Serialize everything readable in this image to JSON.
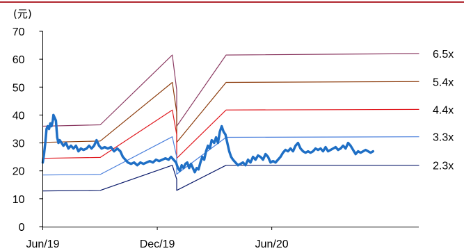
{
  "chart_data": {
    "type": "line",
    "ylabel": "(元)",
    "ylim": [
      0,
      70
    ],
    "yticks": [
      0,
      10,
      20,
      30,
      40,
      50,
      60,
      70
    ],
    "xlim": [
      "2019-06-01",
      "2021-01-22"
    ],
    "xticks": [
      {
        "date": "2019-06-01",
        "label": "Jun/19"
      },
      {
        "date": "2019-12-01",
        "label": "Dec/19"
      },
      {
        "date": "2020-06-01",
        "label": "Jun/20"
      }
    ],
    "grid": false,
    "colors": {
      "top_rule": "#b0262e",
      "axis": "#000000",
      "price": "#1f6fc5"
    },
    "series": [
      {
        "name": "6.5x",
        "color": "#8b3a62",
        "width": 1.2,
        "points": [
          [
            "2019-06-01",
            36
          ],
          [
            "2019-09-01",
            36.5
          ],
          [
            "2019-12-25",
            61.5
          ],
          [
            "2020-01-01",
            49
          ],
          [
            "2020-01-01",
            36
          ],
          [
            "2020-03-20",
            61.5
          ],
          [
            "2021-01-22",
            62
          ]
        ]
      },
      {
        "name": "5.4x",
        "color": "#8b3a0a",
        "width": 1.2,
        "points": [
          [
            "2019-06-01",
            30.2
          ],
          [
            "2019-09-01",
            30.7
          ],
          [
            "2019-12-25",
            51.7
          ],
          [
            "2020-01-01",
            41
          ],
          [
            "2020-01-01",
            30.2
          ],
          [
            "2020-03-20",
            51.7
          ],
          [
            "2021-01-22",
            52
          ]
        ]
      },
      {
        "name": "4.4x",
        "color": "#e0181e",
        "width": 1.2,
        "points": [
          [
            "2019-06-01",
            24.5
          ],
          [
            "2019-09-01",
            24.8
          ],
          [
            "2019-12-25",
            41.8
          ],
          [
            "2020-01-01",
            33
          ],
          [
            "2020-01-01",
            24.5
          ],
          [
            "2020-03-20",
            41.8
          ],
          [
            "2021-01-22",
            42
          ]
        ]
      },
      {
        "name": "3.3x",
        "color": "#4a7fdc",
        "width": 1.2,
        "points": [
          [
            "2019-06-01",
            18.5
          ],
          [
            "2019-09-01",
            18.7
          ],
          [
            "2019-12-25",
            32.2
          ],
          [
            "2020-01-01",
            25
          ],
          [
            "2020-01-01",
            18.8
          ],
          [
            "2020-03-20",
            32
          ],
          [
            "2021-01-22",
            32.2
          ]
        ]
      },
      {
        "name": "2.3x",
        "color": "#0a1a6b",
        "width": 1.2,
        "points": [
          [
            "2019-06-01",
            12.8
          ],
          [
            "2019-09-01",
            13
          ],
          [
            "2019-12-25",
            22
          ],
          [
            "2020-01-01",
            17
          ],
          [
            "2020-01-01",
            13
          ],
          [
            "2020-03-20",
            22
          ],
          [
            "2021-01-22",
            22
          ]
        ]
      },
      {
        "name": "",
        "color": "#1f6fc5",
        "width": 3.5,
        "points": [
          [
            "2019-06-01",
            23
          ],
          [
            "2019-06-03",
            26
          ],
          [
            "2019-06-05",
            30
          ],
          [
            "2019-06-07",
            35
          ],
          [
            "2019-06-09",
            36
          ],
          [
            "2019-06-11",
            35
          ],
          [
            "2019-06-13",
            37
          ],
          [
            "2019-06-15",
            36
          ],
          [
            "2019-06-17",
            38
          ],
          [
            "2019-06-18",
            40
          ],
          [
            "2019-06-20",
            39
          ],
          [
            "2019-06-22",
            38
          ],
          [
            "2019-06-24",
            32
          ],
          [
            "2019-06-26",
            30
          ],
          [
            "2019-06-28",
            31
          ],
          [
            "2019-07-01",
            30
          ],
          [
            "2019-07-04",
            29
          ],
          [
            "2019-07-08",
            30
          ],
          [
            "2019-07-12",
            28
          ],
          [
            "2019-07-16",
            29
          ],
          [
            "2019-07-20",
            28
          ],
          [
            "2019-07-24",
            29
          ],
          [
            "2019-07-28",
            27
          ],
          [
            "2019-08-01",
            28
          ],
          [
            "2019-08-05",
            27.5
          ],
          [
            "2019-08-10",
            28
          ],
          [
            "2019-08-14",
            29
          ],
          [
            "2019-08-18",
            28
          ],
          [
            "2019-08-22",
            29
          ],
          [
            "2019-08-26",
            31
          ],
          [
            "2019-08-30",
            29
          ],
          [
            "2019-09-03",
            28
          ],
          [
            "2019-09-08",
            28.5
          ],
          [
            "2019-09-13",
            28
          ],
          [
            "2019-09-18",
            28.5
          ],
          [
            "2019-09-23",
            27
          ],
          [
            "2019-09-28",
            28
          ],
          [
            "2019-10-03",
            27
          ],
          [
            "2019-10-07",
            25
          ],
          [
            "2019-10-11",
            24
          ],
          [
            "2019-10-15",
            23
          ],
          [
            "2019-10-20",
            22.5
          ],
          [
            "2019-10-25",
            23
          ],
          [
            "2019-10-30",
            22
          ],
          [
            "2019-11-04",
            23
          ],
          [
            "2019-11-09",
            22.5
          ],
          [
            "2019-11-14",
            23
          ],
          [
            "2019-11-19",
            23.5
          ],
          [
            "2019-11-24",
            23
          ],
          [
            "2019-11-29",
            24
          ],
          [
            "2019-12-04",
            23.5
          ],
          [
            "2019-12-09",
            24
          ],
          [
            "2019-12-14",
            24.5
          ],
          [
            "2019-12-19",
            24
          ],
          [
            "2019-12-23",
            25
          ],
          [
            "2019-12-27",
            24
          ],
          [
            "2019-12-31",
            23
          ],
          [
            "2020-01-03",
            21
          ],
          [
            "2020-01-06",
            20
          ],
          [
            "2020-01-09",
            22
          ],
          [
            "2020-01-12",
            21
          ],
          [
            "2020-01-15",
            22.5
          ],
          [
            "2020-01-18",
            23
          ],
          [
            "2020-01-21",
            21
          ],
          [
            "2020-01-24",
            22.5
          ],
          [
            "2020-01-27",
            21
          ],
          [
            "2020-01-30",
            19.5
          ],
          [
            "2020-02-02",
            21
          ],
          [
            "2020-02-05",
            20.5
          ],
          [
            "2020-02-08",
            23
          ],
          [
            "2020-02-11",
            25
          ],
          [
            "2020-02-14",
            24
          ],
          [
            "2020-02-17",
            27
          ],
          [
            "2020-02-20",
            29
          ],
          [
            "2020-02-23",
            28
          ],
          [
            "2020-02-26",
            31
          ],
          [
            "2020-03-01",
            30
          ],
          [
            "2020-03-04",
            32
          ],
          [
            "2020-03-07",
            30
          ],
          [
            "2020-03-10",
            34
          ],
          [
            "2020-03-13",
            36
          ],
          [
            "2020-03-16",
            34
          ],
          [
            "2020-03-19",
            33
          ],
          [
            "2020-03-22",
            30
          ],
          [
            "2020-03-25",
            27
          ],
          [
            "2020-03-28",
            25
          ],
          [
            "2020-03-31",
            24
          ],
          [
            "2020-04-04",
            23
          ],
          [
            "2020-04-08",
            22
          ],
          [
            "2020-04-12",
            22.5
          ],
          [
            "2020-04-16",
            23
          ],
          [
            "2020-04-20",
            22
          ],
          [
            "2020-04-24",
            24
          ],
          [
            "2020-04-28",
            23
          ],
          [
            "2020-05-02",
            25
          ],
          [
            "2020-05-06",
            24
          ],
          [
            "2020-05-10",
            25.5
          ],
          [
            "2020-05-14",
            25
          ],
          [
            "2020-05-18",
            24
          ],
          [
            "2020-05-22",
            26
          ],
          [
            "2020-05-26",
            25
          ],
          [
            "2020-05-30",
            23
          ],
          [
            "2020-06-03",
            23.5
          ],
          [
            "2020-06-07",
            23
          ],
          [
            "2020-06-11",
            24
          ],
          [
            "2020-06-15",
            25
          ],
          [
            "2020-06-19",
            26.5
          ],
          [
            "2020-06-23",
            27.5
          ],
          [
            "2020-06-27",
            27
          ],
          [
            "2020-07-01",
            28
          ],
          [
            "2020-07-05",
            27
          ],
          [
            "2020-07-09",
            29
          ],
          [
            "2020-07-13",
            30
          ],
          [
            "2020-07-17",
            28
          ],
          [
            "2020-07-21",
            27
          ],
          [
            "2020-07-25",
            26.5
          ],
          [
            "2020-07-29",
            27
          ],
          [
            "2020-08-02",
            26.5
          ],
          [
            "2020-08-06",
            27
          ],
          [
            "2020-08-10",
            28
          ],
          [
            "2020-08-14",
            27.5
          ],
          [
            "2020-08-18",
            28
          ],
          [
            "2020-08-22",
            27
          ],
          [
            "2020-08-26",
            28.5
          ],
          [
            "2020-08-30",
            27
          ],
          [
            "2020-09-03",
            27.5
          ],
          [
            "2020-09-07",
            28
          ],
          [
            "2020-09-11",
            28.5
          ],
          [
            "2020-09-15",
            27.5
          ],
          [
            "2020-09-19",
            28
          ],
          [
            "2020-09-23",
            29
          ],
          [
            "2020-09-27",
            28
          ],
          [
            "2020-10-01",
            30
          ],
          [
            "2020-10-05",
            29
          ],
          [
            "2020-10-09",
            27.5
          ],
          [
            "2020-10-13",
            26
          ],
          [
            "2020-10-17",
            27
          ],
          [
            "2020-10-21",
            26.5
          ],
          [
            "2020-10-25",
            27
          ],
          [
            "2020-10-29",
            27.5
          ],
          [
            "2020-11-02",
            27
          ],
          [
            "2020-11-06",
            26.5
          ],
          [
            "2020-11-10",
            27
          ]
        ]
      }
    ],
    "end_labels": [
      "6.5x",
      "5.4x",
      "4.4x",
      "3.3x",
      "2.3x"
    ]
  }
}
